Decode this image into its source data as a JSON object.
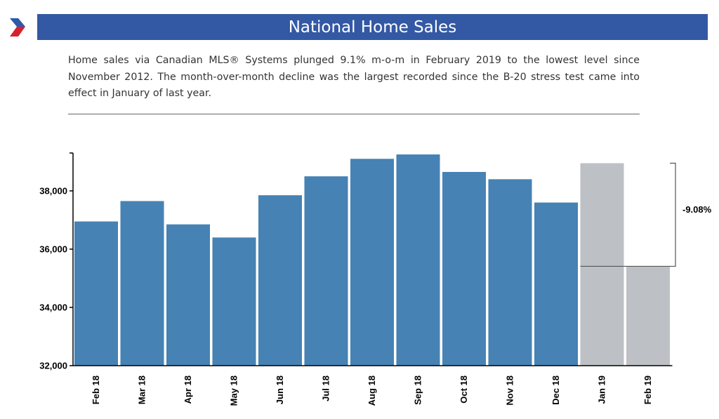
{
  "header": {
    "title": "National Home Sales",
    "description": "Home sales via Canadian MLS® Systems plunged 9.1% m-o-m in February 2019 to the lowest level since November 2012. The month-over-month decline was the largest recorded since the B-20 stress test came into effect in January of last year."
  },
  "chart_data": {
    "type": "bar",
    "title": "",
    "xlabel": "",
    "ylabel": "",
    "categories": [
      "Feb 18",
      "Mar 18",
      "Apr 18",
      "May 18",
      "Jun 18",
      "Jul 18",
      "Aug 18",
      "Sep 18",
      "Oct 18",
      "Nov 18",
      "Dec 18",
      "Jan 19",
      "Feb 19"
    ],
    "values": [
      36950,
      37650,
      36850,
      36400,
      37850,
      38500,
      39100,
      39250,
      38650,
      38400,
      37600,
      38950,
      35410
    ],
    "highlighted_categories": [
      "Jan 19",
      "Feb 19"
    ],
    "ylim": [
      32000,
      39300
    ],
    "y_ticks": [
      32000,
      34000,
      36000,
      38000
    ],
    "y_tick_labels": [
      "32,000",
      "34,000",
      "36,000",
      "38,000"
    ],
    "grid": false,
    "legend": "none",
    "annotation": {
      "text": "-9.08%",
      "from_category": "Jan 19",
      "to_category": "Feb 19"
    },
    "colors": {
      "primary": "#4682b4",
      "highlight": "#bdc1c6"
    }
  },
  "colors": {
    "title_bar": "#3358a4",
    "logo_blue": "#2d5aa6",
    "logo_red": "#d6222e"
  }
}
